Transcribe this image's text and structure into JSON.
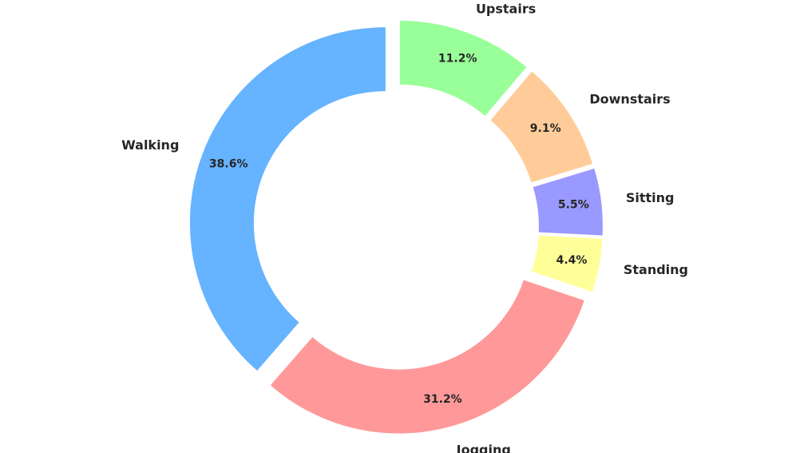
{
  "chart_data": {
    "type": "pie",
    "style": "donut",
    "title": "",
    "categories": [
      "Walking",
      "Jogging",
      "Standing",
      "Sitting",
      "Downstairs",
      "Upstairs"
    ],
    "values": [
      38.6,
      31.2,
      4.4,
      5.5,
      9.1,
      11.2
    ],
    "labels": [
      "38.6%",
      "31.2%",
      "4.4%",
      "5.5%",
      "9.1%",
      "11.2%"
    ],
    "colors": [
      "#66b3ff",
      "#ff9999",
      "#ffff99",
      "#9999ff",
      "#ffcc99",
      "#99ff99"
    ],
    "exploded": true,
    "legend": "none"
  }
}
